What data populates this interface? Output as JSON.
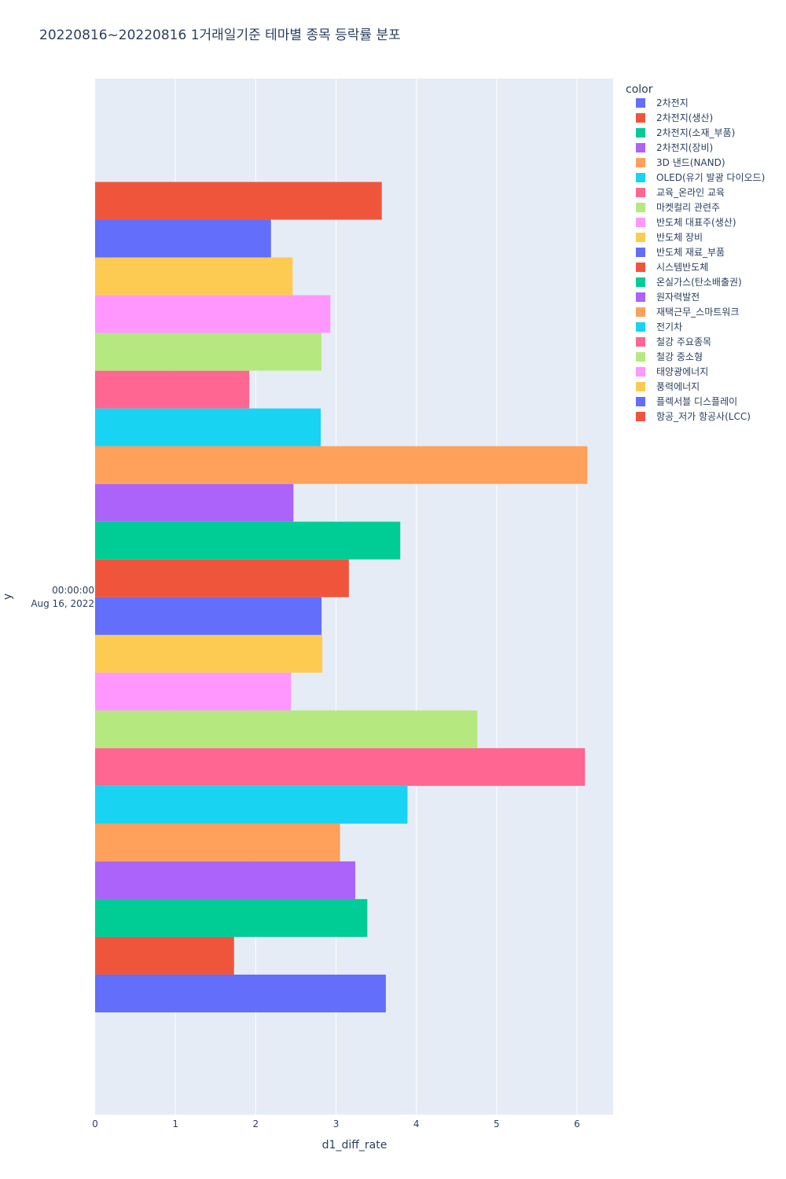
{
  "chart_data": {
    "type": "bar",
    "orientation": "horizontal",
    "barmode": "group",
    "title": "20220816~20220816 1거래일기준 테마별 종목 등락률 분포",
    "xlabel": "d1_diff_rate",
    "ylabel": "y",
    "y_category": [
      "00:00:00",
      "Aug 16, 2022"
    ],
    "xlim": [
      0,
      6.45
    ],
    "xticks": [
      "0",
      "1",
      "2",
      "3",
      "4",
      "5",
      "6"
    ],
    "grid": true,
    "legend_title": "color",
    "legend_position": "right",
    "series": [
      {
        "name": "2차전지",
        "value": 3.62,
        "color": "#636efa"
      },
      {
        "name": "2차전지(생산)",
        "value": 1.73,
        "color": "#EF553B"
      },
      {
        "name": "2차전지(소재_부품)",
        "value": 3.39,
        "color": "#00cc96"
      },
      {
        "name": "2차전지(장비)",
        "value": 3.24,
        "color": "#ab63fa"
      },
      {
        "name": "3D 낸드(NAND)",
        "value": 3.05,
        "color": "#FFA15A"
      },
      {
        "name": "OLED(유기 발광 다이오드)",
        "value": 3.89,
        "color": "#19d3f3"
      },
      {
        "name": "교육_온라인 교육",
        "value": 6.1,
        "color": "#FF6692"
      },
      {
        "name": "마켓컬리 관련주",
        "value": 4.76,
        "color": "#B6E880"
      },
      {
        "name": "반도체 대표주(생산)",
        "value": 2.44,
        "color": "#FF97FF"
      },
      {
        "name": "반도체 장비",
        "value": 2.83,
        "color": "#FECB52"
      },
      {
        "name": "반도체 재료_부품",
        "value": 2.82,
        "color": "#636efa"
      },
      {
        "name": "시스템반도체",
        "value": 3.16,
        "color": "#EF553B"
      },
      {
        "name": "온실가스(탄소배출권)",
        "value": 3.8,
        "color": "#00cc96"
      },
      {
        "name": "원자력발전",
        "value": 2.47,
        "color": "#ab63fa"
      },
      {
        "name": "재택근무_스마트워크",
        "value": 6.13,
        "color": "#FFA15A"
      },
      {
        "name": "전기차",
        "value": 2.81,
        "color": "#19d3f3"
      },
      {
        "name": "철강 주요종목",
        "value": 1.92,
        "color": "#FF6692"
      },
      {
        "name": "철강 중소형",
        "value": 2.82,
        "color": "#B6E880"
      },
      {
        "name": "태양광에너지",
        "value": 2.93,
        "color": "#FF97FF"
      },
      {
        "name": "풍력에너지",
        "value": 2.46,
        "color": "#FECB52"
      },
      {
        "name": "플렉서블 디스플레이",
        "value": 2.19,
        "color": "#636efa"
      },
      {
        "name": "항공_저가 항공사(LCC)",
        "value": 3.57,
        "color": "#EF553B"
      }
    ]
  }
}
